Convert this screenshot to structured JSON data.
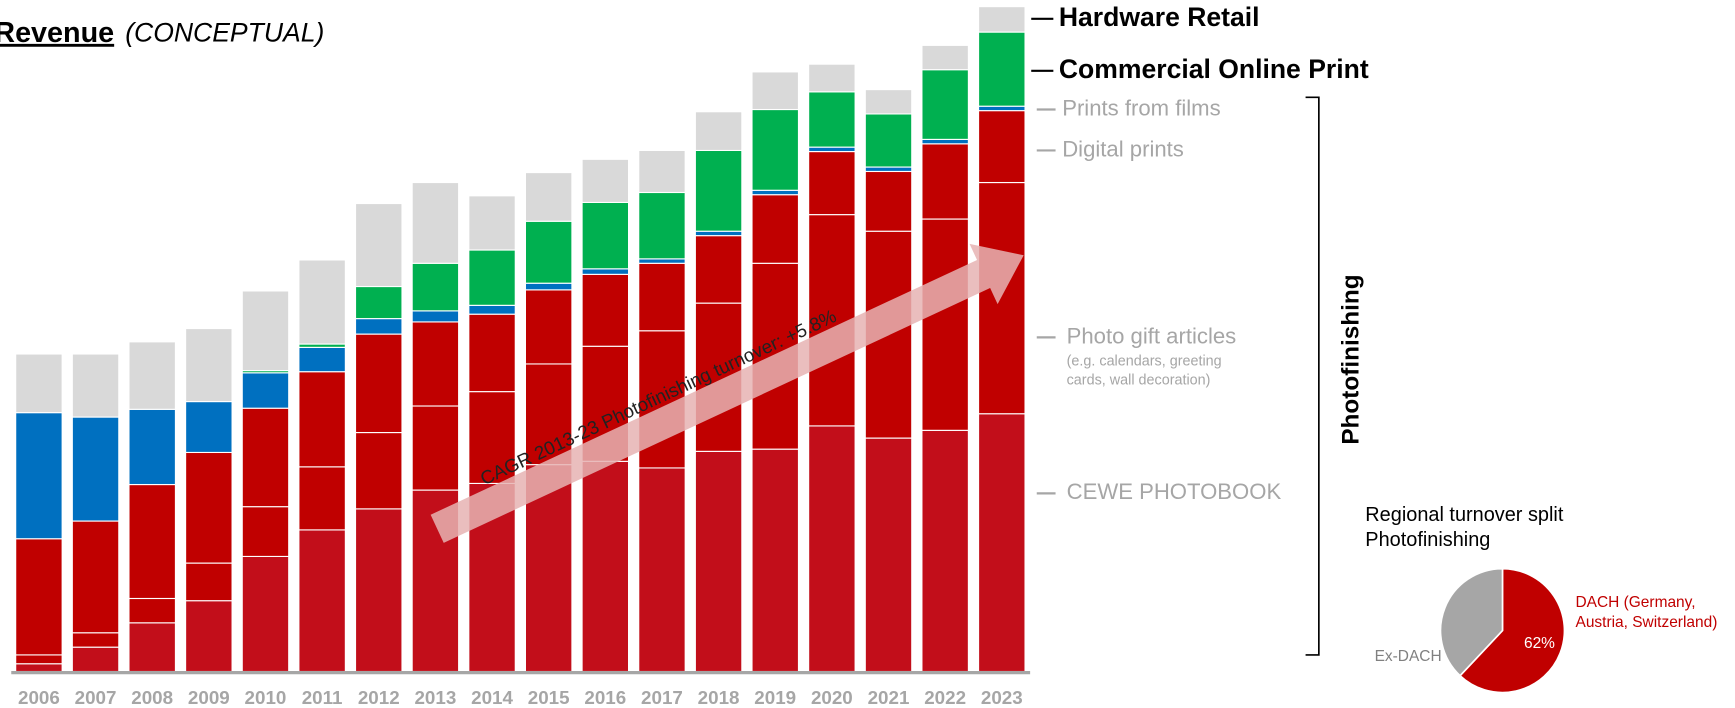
{
  "chart_data": [
    {
      "type": "stacked_bar",
      "title": "Revenue",
      "subtitle": "(CONCEPTUAL)",
      "annotation": "CAGR 2013-23 Photofinishing turnover: +5.8%",
      "bracket_label": "Photofinishing",
      "legend_note": [
        "(e.g. calendars, greeting",
        "cards, wall decoration)"
      ],
      "categories": [
        "2006",
        "2007",
        "2008",
        "2009",
        "2010",
        "2011",
        "2012",
        "2013",
        "2014",
        "2015",
        "2016",
        "2017",
        "2018",
        "2019",
        "2020",
        "2021",
        "2022",
        "2023"
      ],
      "ylim": [
        0,
        600
      ],
      "series": [
        {
          "name": "CEWE PHOTOBOOK",
          "color": "#c20e1a",
          "values": [
            7,
            22,
            44,
            64,
            104,
            128,
            147,
            164,
            170,
            187,
            190,
            184,
            199,
            201,
            222,
            211,
            218,
            233
          ]
        },
        {
          "name": "Photo gift articles",
          "color": "#c00000",
          "values": [
            8,
            13,
            22,
            34,
            45,
            57,
            69,
            76,
            83,
            91,
            104,
            124,
            134,
            168,
            191,
            187,
            191,
            209
          ]
        },
        {
          "name": "Digital prints",
          "color": "#c00000",
          "values": [
            105,
            101,
            103,
            100,
            89,
            86,
            89,
            76,
            70,
            67,
            65,
            61,
            61,
            62,
            57,
            54,
            68,
            65
          ]
        },
        {
          "name": "Prints from films",
          "color": "#0070c0",
          "values": [
            114,
            94,
            68,
            46,
            32,
            22,
            14,
            10,
            8,
            6,
            5,
            4,
            4,
            4,
            4,
            4,
            4,
            4
          ]
        },
        {
          "name": "Commercial Online Print",
          "color": "#00b050",
          "values": [
            0,
            0,
            0,
            0,
            2,
            3,
            29,
            43,
            50,
            56,
            60,
            60,
            73,
            73,
            50,
            48,
            63,
            67
          ]
        },
        {
          "name": "Hardware Retail",
          "color": "#d9d9d9",
          "values": [
            53,
            57,
            61,
            66,
            72,
            76,
            75,
            73,
            49,
            44,
            39,
            38,
            35,
            34,
            25,
            22,
            22,
            23
          ]
        }
      ]
    },
    {
      "type": "pie",
      "title": [
        "Regional turnover split",
        "Photofinishing"
      ],
      "categories": [
        [
          "DACH (Germany,",
          "Austria, Switzerland)"
        ],
        [
          "Ex-DACH"
        ]
      ],
      "values": [
        62,
        38
      ],
      "value_labels": [
        "62%",
        null
      ],
      "colors": [
        "#c00000",
        "#a6a6a6"
      ]
    }
  ]
}
